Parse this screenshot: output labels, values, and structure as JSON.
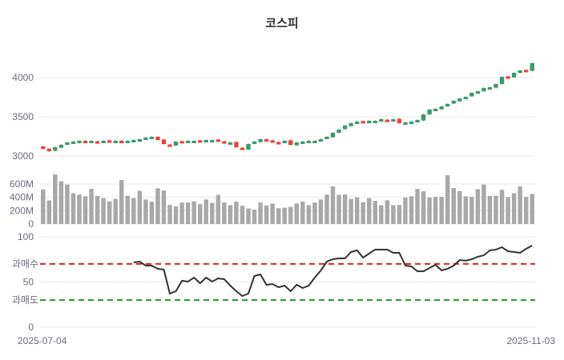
{
  "chart_data": {
    "type": "candlestick",
    "title": "코스피",
    "x_labels": [
      "2025-07-04",
      "2025-11-03"
    ],
    "price_axis": {
      "ticks": [
        3000,
        3500,
        4000
      ],
      "range": [
        2990,
        4250
      ]
    },
    "volume_axis": {
      "ticks": [
        0,
        200,
        400,
        600
      ],
      "tick_labels": [
        "0",
        "200M",
        "400M",
        "600M"
      ],
      "unit": "M",
      "range": [
        0,
        750
      ]
    },
    "oscillator_axis": {
      "ticks": [
        0,
        50,
        100
      ],
      "range": [
        0,
        100
      ],
      "overbought": 70,
      "oversold": 30,
      "overbought_label": "과매수",
      "oversold_label": "과매도"
    },
    "colors": {
      "up": "#3a9a6e",
      "down": "#f0403c",
      "volume": "#a8a8a8",
      "line": "#333333",
      "overbought": "#e02020",
      "oversold": "#1e9a1e",
      "grid": "#e8e8e8"
    },
    "closes": [
      3092,
      3061,
      3112,
      3143,
      3173,
      3184,
      3194,
      3184,
      3194,
      3184,
      3194,
      3184,
      3194,
      3173,
      3194,
      3204,
      3214,
      3235,
      3245,
      3204,
      3153,
      3133,
      3184,
      3184,
      3194,
      3194,
      3184,
      3204,
      3204,
      3194,
      3173,
      3173,
      3112,
      3082,
      3153,
      3184,
      3214,
      3194,
      3184,
      3173,
      3194,
      3143,
      3173,
      3184,
      3194,
      3194,
      3214,
      3245,
      3296,
      3337,
      3388,
      3418,
      3439,
      3428,
      3449,
      3449,
      3469,
      3459,
      3469,
      3418,
      3428,
      3439,
      3459,
      3530,
      3592,
      3602,
      3632,
      3663,
      3704,
      3734,
      3755,
      3806,
      3826,
      3867,
      3877,
      3918,
      4010,
      4010,
      4061,
      4092,
      4092,
      4184
    ],
    "volumes_m": [
      518,
      355,
      743,
      641,
      592,
      461,
      441,
      416,
      527,
      420,
      388,
      339,
      376,
      661,
      424,
      388,
      498,
      367,
      335,
      535,
      502,
      286,
      265,
      322,
      322,
      339,
      298,
      367,
      318,
      437,
      322,
      282,
      335,
      273,
      233,
      216,
      322,
      278,
      306,
      237,
      245,
      257,
      306,
      335,
      282,
      322,
      367,
      441,
      563,
      437,
      445,
      376,
      400,
      327,
      388,
      347,
      282,
      355,
      282,
      286,
      396,
      416,
      527,
      490,
      396,
      408,
      408,
      731,
      539,
      494,
      416,
      408,
      522,
      592,
      420,
      424,
      514,
      404,
      461,
      563,
      404,
      449
    ],
    "oscillator": [
      null,
      null,
      null,
      null,
      null,
      null,
      null,
      null,
      null,
      null,
      null,
      null,
      null,
      null,
      null,
      71.7,
      72.6,
      68.1,
      68.1,
      64.6,
      63.7,
      37.2,
      39.8,
      51.3,
      50.4,
      54.9,
      48.7,
      54.9,
      50.4,
      54,
      53.1,
      46,
      39.8,
      34.5,
      37.2,
      56.6,
      58.4,
      46.9,
      47.8,
      44.2,
      46,
      39.8,
      46.9,
      43.4,
      46,
      54.9,
      62.8,
      72.6,
      75.2,
      76.1,
      76.1,
      83.2,
      85,
      77,
      81.4,
      85.8,
      85.8,
      85.8,
      82.3,
      82.3,
      68.1,
      67.3,
      61.9,
      61.9,
      65.5,
      69,
      62.8,
      64.6,
      68.1,
      74.3,
      73.5,
      75.2,
      77.9,
      79.6,
      85,
      85.8,
      88.5,
      84.1,
      83.2,
      82.3,
      86.7,
      90.3
    ]
  }
}
